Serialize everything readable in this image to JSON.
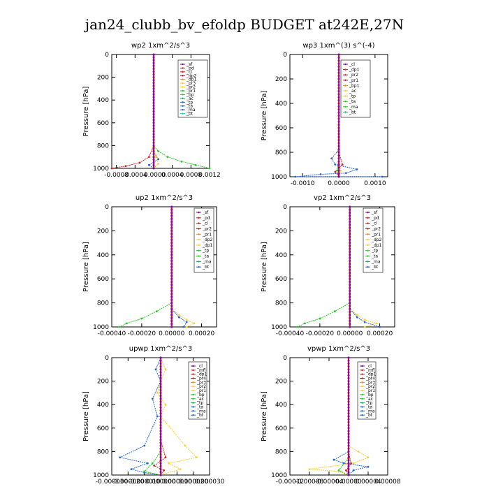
{
  "title": "jan24_clubb_bv_efoldp  BUDGET at242E,27N",
  "chart_data": [
    {
      "type": "line",
      "title": "wp2   1xm^2/s^3",
      "ylabel": "Pressure [hPa]",
      "ylim": [
        1000,
        0
      ],
      "yticks": [
        0,
        200,
        400,
        600,
        800,
        1000
      ],
      "xlim": [
        -0.0009,
        0.0012
      ],
      "xticks": [
        -0.0008,
        -0.0004,
        0.0,
        0.0004,
        0.0008,
        0.0012
      ],
      "xtick_labels": [
        "-0.0008",
        "-0.0004",
        "-0.0000",
        "0.0004",
        "0.0008",
        "0.0012"
      ],
      "legend": [
        "_sf",
        "_pd",
        "_cl",
        "_dp2",
        "_dp1",
        "_pr3",
        "_pr2",
        "_pr1",
        "_bp",
        "_ac",
        "_tp",
        "_ta",
        "_ma",
        "_bt"
      ],
      "series": [
        {
          "name": "_pr1",
          "color": "#22cc22",
          "x": [
            0,
            0,
            0.0001,
            0.0003,
            0.0006,
            0.0009,
            0.0012
          ],
          "y": [
            0,
            800,
            850,
            900,
            940,
            970,
            1000
          ]
        },
        {
          "name": "_dp1",
          "color": "#cc2222",
          "x": [
            0,
            0,
            -0.0001,
            -0.0003,
            -0.0006,
            -0.0009
          ],
          "y": [
            0,
            800,
            900,
            950,
            980,
            1000
          ]
        },
        {
          "name": "_tp",
          "color": "#2266cc",
          "x": [
            0,
            0,
            0.0001,
            -0.0001,
            0
          ],
          "y": [
            0,
            850,
            920,
            970,
            1000
          ]
        },
        {
          "name": "_pr2",
          "color": "#ffcc33",
          "x": [
            0,
            0,
            5e-05,
            0.0001,
            0
          ],
          "y": [
            0,
            820,
            900,
            960,
            1000
          ]
        },
        {
          "name": "_sf",
          "color": "#8800aa",
          "x": [
            0,
            0,
            0,
            0
          ],
          "y": [
            0,
            500,
            900,
            1000
          ]
        }
      ]
    },
    {
      "type": "line",
      "title": "wp3   1xm^(3) s^(-4)",
      "ylabel": "Pressure [hPa]",
      "ylim": [
        1000,
        0
      ],
      "yticks": [
        0,
        200,
        400,
        600,
        800,
        1000
      ],
      "xlim": [
        -0.00135,
        0.00135
      ],
      "xticks": [
        -0.001,
        0.0,
        0.001
      ],
      "xtick_labels": [
        "-0.0010",
        "0.0000",
        "0.0010"
      ],
      "legend": [
        "_cl",
        "_dp1",
        "_pr2",
        "_pr1",
        "_bp1",
        "_ac",
        "_tp",
        "_ta",
        "_ma",
        "_bt"
      ],
      "series": [
        {
          "name": "_tp",
          "color": "#2266cc",
          "x": [
            0,
            0,
            -0.0002,
            -0.0001,
            0.0005,
            0.0002,
            -0.0005,
            -0.0012,
            0.0012
          ],
          "y": [
            0,
            780,
            850,
            900,
            940,
            970,
            980,
            1000,
            1000
          ]
        },
        {
          "name": "_cl",
          "color": "#cc2222",
          "x": [
            0,
            0,
            0.0001,
            -0.0001,
            0
          ],
          "y": [
            0,
            800,
            900,
            960,
            1000
          ]
        },
        {
          "name": "_pr2",
          "color": "#ffcc33",
          "x": [
            0,
            0,
            5e-05,
            0
          ],
          "y": [
            0,
            850,
            950,
            1000
          ]
        },
        {
          "name": "_bp1",
          "color": "#22cc22",
          "x": [
            0,
            0,
            -5e-05,
            0
          ],
          "y": [
            0,
            850,
            950,
            1000
          ]
        }
      ]
    },
    {
      "type": "line",
      "title": "up2   1xm^2/s^3",
      "ylabel": "Pressure [hPa]",
      "ylim": [
        1000,
        0
      ],
      "yticks": [
        0,
        200,
        400,
        600,
        800,
        1000
      ],
      "xlim": [
        -0.0004,
        0.0003
      ],
      "xticks": [
        -0.0004,
        -0.0002,
        0.0,
        0.0002
      ],
      "xtick_labels": [
        "-0.00040",
        "-0.00020",
        "0.00000",
        "0.00020"
      ],
      "legend": [
        "_sf",
        "_pd",
        "_cl",
        "_pr2",
        "_pr1",
        "_dp2",
        "_dp1",
        "_tp",
        "_ta",
        "_ma",
        "_bt"
      ],
      "series": [
        {
          "name": "_dp1",
          "color": "#22cc22",
          "x": [
            0,
            0,
            -0.0001,
            -0.0002,
            -0.0003,
            -0.00035
          ],
          "y": [
            0,
            800,
            870,
            930,
            970,
            1000
          ]
        },
        {
          "name": "_pr2",
          "color": "#ffcc33",
          "x": [
            0,
            0,
            5e-05,
            0.0001,
            0.00015,
            0.0001
          ],
          "y": [
            0,
            850,
            900,
            940,
            970,
            1000
          ]
        },
        {
          "name": "_tp",
          "color": "#2266cc",
          "x": [
            0,
            0,
            5e-05,
            0.0001,
            8e-05
          ],
          "y": [
            0,
            850,
            920,
            960,
            1000
          ]
        },
        {
          "name": "_cl",
          "color": "#cc2222",
          "x": [
            0,
            0,
            0,
            0
          ],
          "y": [
            0,
            500,
            900,
            1000
          ]
        }
      ]
    },
    {
      "type": "line",
      "title": "vp2   1xm^2/s^3",
      "ylabel": "Pressure [hPa]",
      "ylim": [
        1000,
        0
      ],
      "yticks": [
        0,
        200,
        400,
        600,
        800,
        1000
      ],
      "xlim": [
        -0.0004,
        0.0003
      ],
      "xticks": [
        -0.0004,
        -0.0002,
        0.0,
        0.0002
      ],
      "xtick_labels": [
        "-0.00040",
        "-0.00020",
        "0.00000",
        "0.00020"
      ],
      "legend": [
        "_sf",
        "_pd",
        "_cl",
        "_pr2",
        "_pr1",
        "_dp2",
        "_dp1",
        "_tp",
        "_ta",
        "_ma",
        "_bt"
      ],
      "series": [
        {
          "name": "_dp1",
          "color": "#22cc22",
          "x": [
            0,
            0,
            -0.0001,
            -0.0002,
            -0.0003,
            -0.00035
          ],
          "y": [
            0,
            800,
            870,
            930,
            970,
            1000
          ]
        },
        {
          "name": "_pr2",
          "color": "#ffcc33",
          "x": [
            0,
            0,
            5e-05,
            0.0001,
            0.00018,
            0.0001
          ],
          "y": [
            0,
            850,
            900,
            940,
            970,
            1000
          ]
        },
        {
          "name": "_tp",
          "color": "#2266cc",
          "x": [
            0,
            0,
            5e-05,
            0.0001,
            0.0002
          ],
          "y": [
            0,
            850,
            920,
            960,
            1000
          ]
        },
        {
          "name": "_cl",
          "color": "#cc2222",
          "x": [
            0,
            0,
            0,
            0
          ],
          "y": [
            0,
            500,
            900,
            1000
          ]
        }
      ]
    },
    {
      "type": "line",
      "title": "upwp   1xm^2/s^3",
      "ylabel": "Pressure [hPa]",
      "ylim": [
        1000,
        0
      ],
      "yticks": [
        0,
        200,
        400,
        600,
        800,
        1000
      ],
      "xlim": [
        -3e-05,
        3e-05
      ],
      "xticks": [
        -3e-05,
        -2e-05,
        -1e-05,
        0.0,
        1e-05,
        2e-05,
        3e-05
      ],
      "xtick_labels": [
        "-0.000030",
        "-0.000020",
        "-0.000010",
        "0.000000",
        "0.000010",
        "0.000020",
        "0.000030"
      ],
      "legend": [
        "_cl",
        "_mfl",
        "_dp1",
        "_pr4",
        "_pr3",
        "_pr2",
        "_pr1",
        "_bp",
        "_ac",
        "_tp",
        "_ta",
        "_ma",
        "_bt"
      ],
      "series": [
        {
          "name": "_pr1",
          "color": "#ffcc33",
          "x": [
            0.0,
            3e-06,
            0.0,
            -2e-06,
            3e-06,
            0.0,
            1.5e-05,
            2.2e-05,
            5e-06,
            1.2e-05,
            0.0
          ],
          "y": [
            0,
            100,
            200,
            300,
            400,
            500,
            750,
            850,
            900,
            950,
            1000
          ]
        },
        {
          "name": "_tp",
          "color": "#2266cc",
          "x": [
            0.0,
            -3e-06,
            0.0,
            -5e-06,
            -2e-06,
            -1e-05,
            -2.5e-05,
            -8e-06,
            -1.8e-05,
            -1e-05,
            0.0
          ],
          "y": [
            0,
            100,
            200,
            350,
            500,
            750,
            850,
            900,
            950,
            980,
            1000
          ]
        },
        {
          "name": "_bp",
          "color": "#22cc22",
          "x": [
            0.0,
            0.0,
            -5e-06,
            -1e-05,
            0.0
          ],
          "y": [
            0,
            800,
            900,
            970,
            1000
          ]
        },
        {
          "name": "_dp1",
          "color": "#cc2222",
          "x": [
            0.0,
            0.0,
            3e-06,
            -4e-06,
            2e-06,
            0.0
          ],
          "y": [
            0,
            700,
            850,
            920,
            960,
            1000
          ]
        },
        {
          "name": "_cl",
          "color": "#8800aa",
          "x": [
            0.0,
            0.0,
            0.0
          ],
          "y": [
            0,
            500,
            1000
          ]
        }
      ]
    },
    {
      "type": "line",
      "title": "vpwp   1xm^2/s^3",
      "ylabel": "Pressure [hPa]",
      "ylim": [
        1000,
        0
      ],
      "yticks": [
        0,
        200,
        400,
        600,
        800,
        1000
      ],
      "xlim": [
        -0.00012,
        8e-05
      ],
      "xticks": [
        -0.00012,
        -8e-05,
        -4e-05,
        0.0,
        4e-05,
        8e-05
      ],
      "xtick_labels": [
        "-0.00012",
        "-0.00008",
        "-0.00004",
        "0.00000",
        "0.00004",
        "0.00008"
      ],
      "legend": [
        "_cl",
        "_mfl",
        "_dp1",
        "_pr4",
        "_pr3",
        "_pr2",
        "_pr1",
        "_bp",
        "_ac",
        "_tp",
        "_ta",
        "_ma",
        "_bt"
      ],
      "series": [
        {
          "name": "_pr1",
          "color": "#ffcc33",
          "x": [
            0.0,
            0.0,
            2e-05,
            4e-05,
            1e-05,
            -8e-05,
            -2e-05,
            0.0
          ],
          "y": [
            0,
            750,
            800,
            850,
            900,
            950,
            970,
            1000
          ]
        },
        {
          "name": "_tp",
          "color": "#2266cc",
          "x": [
            0.0,
            0.0,
            -3e-05,
            -1e-05,
            4e-05,
            1e-05,
            0.0
          ],
          "y": [
            0,
            800,
            870,
            900,
            930,
            960,
            1000
          ]
        },
        {
          "name": "_bp",
          "color": "#22cc22",
          "x": [
            0.0,
            0.0,
            -2e-05,
            0.0
          ],
          "y": [
            0,
            850,
            960,
            1000
          ]
        },
        {
          "name": "_dp1",
          "color": "#cc2222",
          "x": [
            0.0,
            0.0,
            5e-06,
            -5e-06,
            0.0
          ],
          "y": [
            0,
            800,
            900,
            960,
            1000
          ]
        },
        {
          "name": "_cl",
          "color": "#8800aa",
          "x": [
            0.0,
            0.0,
            0.0
          ],
          "y": [
            0,
            500,
            1000
          ]
        }
      ]
    }
  ]
}
